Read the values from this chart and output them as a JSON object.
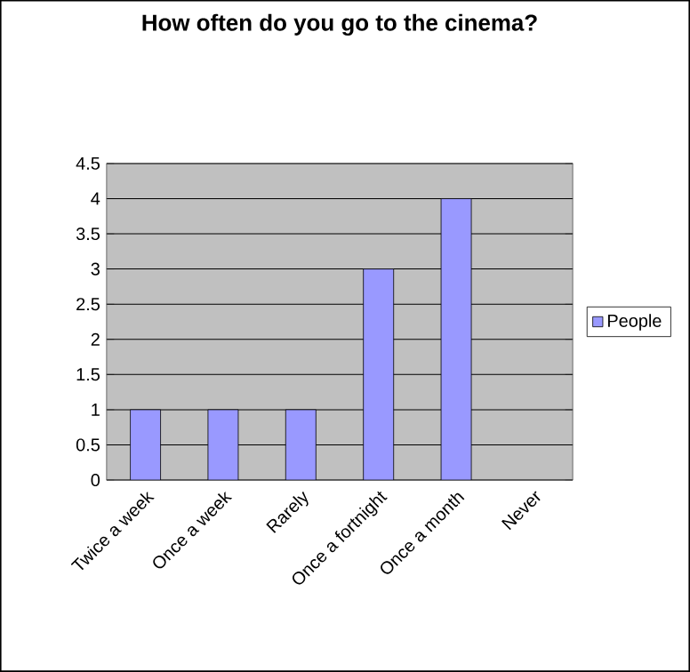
{
  "chart_data": {
    "type": "bar",
    "title": "How often do you go to the cinema?",
    "categories": [
      "Twice a week",
      "Once a week",
      "Rarely",
      "Once a fortnight",
      "Once a month",
      "Never"
    ],
    "series": [
      {
        "name": "People",
        "color": "#9999ff",
        "values": [
          1,
          1,
          1,
          3,
          4,
          0
        ]
      }
    ],
    "ylim": [
      0,
      4.5
    ],
    "yticks": [
      0,
      0.5,
      1,
      1.5,
      2,
      2.5,
      3,
      3.5,
      4,
      4.5
    ],
    "grid": "y",
    "legend": "right"
  }
}
